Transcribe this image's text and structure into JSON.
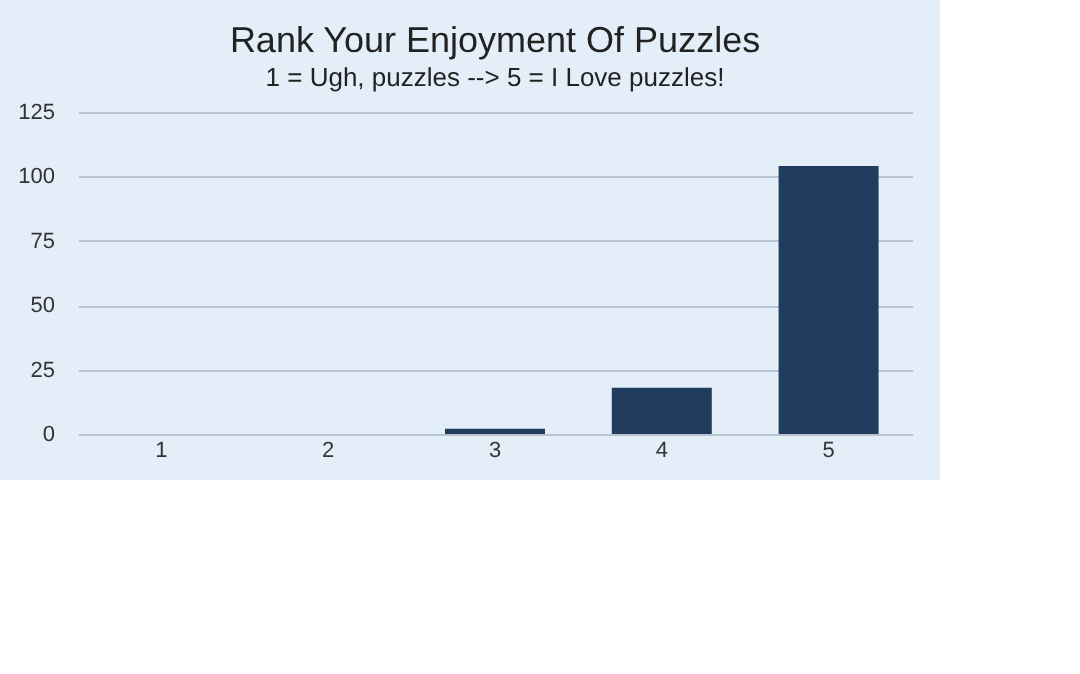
{
  "chart_data": {
    "type": "bar",
    "title": "Rank Your Enjoyment Of Puzzles",
    "subtitle": "1 = Ugh, puzzles  -->  5 = I Love puzzles!",
    "categories": [
      "1",
      "2",
      "3",
      "4",
      "5"
    ],
    "values": [
      0,
      0,
      2,
      18,
      104
    ],
    "color": "#213d5e",
    "ylim": [
      0,
      125
    ],
    "yticks": [
      0,
      25,
      50,
      75,
      100,
      125
    ],
    "grid": "y"
  }
}
